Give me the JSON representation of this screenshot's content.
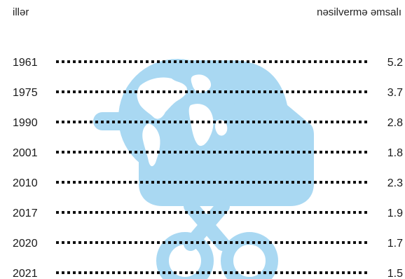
{
  "header": {
    "left_label": "illər",
    "right_label": "nəsilvermə əmsalı"
  },
  "colors": {
    "illustration": "#a9d8f2",
    "text": "#1a1a1a",
    "dots": "#111111"
  },
  "illustration": {
    "icon": "globe-baby-stroller-icon"
  },
  "chart_data": {
    "type": "table",
    "title": "",
    "column_labels": [
      "illər",
      "nəsilvermə əmsalı"
    ],
    "rows": [
      {
        "year": "1961",
        "value": "5.2"
      },
      {
        "year": "1975",
        "value": "3.7"
      },
      {
        "year": "1990",
        "value": "2.8"
      },
      {
        "year": "2001",
        "value": "1.8"
      },
      {
        "year": "2010",
        "value": "2.3"
      },
      {
        "year": "2017",
        "value": "1.9"
      },
      {
        "year": "2020",
        "value": "1.7"
      },
      {
        "year": "2021",
        "value": "1.5"
      }
    ]
  }
}
